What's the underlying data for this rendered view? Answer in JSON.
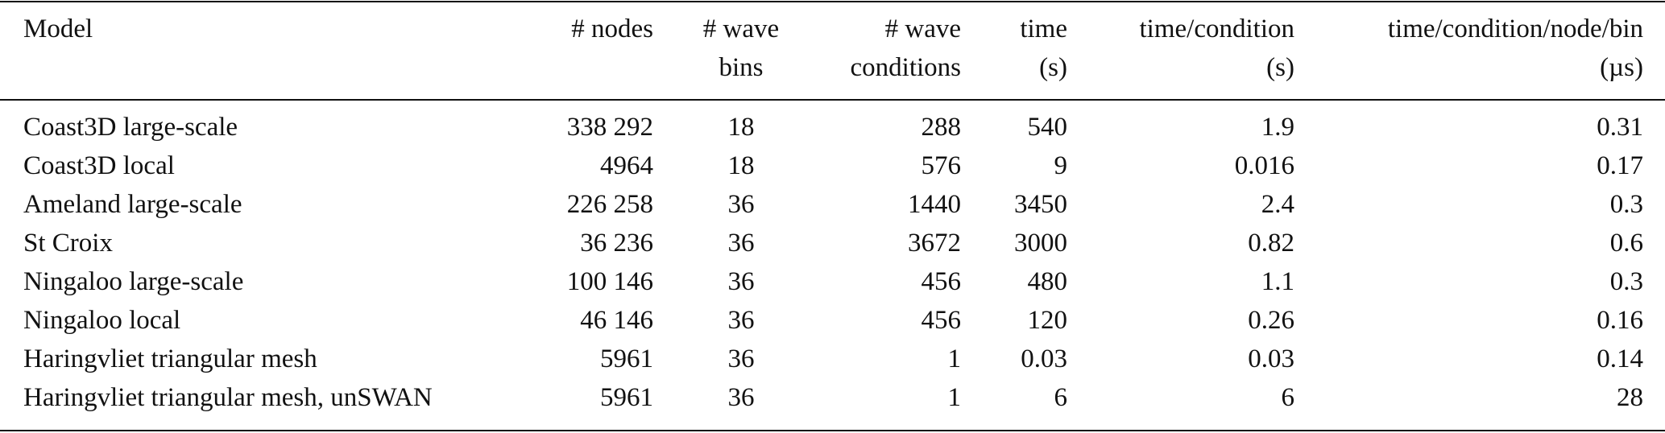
{
  "table": {
    "headers": [
      [
        "Model"
      ],
      [
        "# nodes"
      ],
      [
        "# wave",
        "bins"
      ],
      [
        "# wave",
        "conditions"
      ],
      [
        "time",
        "(s)"
      ],
      [
        "time/condition",
        "(s)"
      ],
      [
        "time/condition/node/bin",
        "(µs)"
      ]
    ],
    "rows": [
      [
        "Coast3D large-scale",
        "338 292",
        "18",
        "288",
        "540",
        "1.9",
        "0.31"
      ],
      [
        "Coast3D local",
        "4964",
        "18",
        "576",
        "9",
        "0.016",
        "0.17"
      ],
      [
        "Ameland large-scale",
        "226 258",
        "36",
        "1440",
        "3450",
        "2.4",
        "0.3"
      ],
      [
        "St Croix",
        "36 236",
        "36",
        "3672",
        "3000",
        "0.82",
        "0.6"
      ],
      [
        "Ningaloo large-scale",
        "100 146",
        "36",
        "456",
        "480",
        "1.1",
        "0.3"
      ],
      [
        "Ningaloo local",
        "46 146",
        "36",
        "456",
        "120",
        "0.26",
        "0.16"
      ],
      [
        "Haringvliet triangular mesh",
        "5961",
        "36",
        "1",
        "0.03",
        "0.03",
        "0.14"
      ],
      [
        "Haringvliet triangular mesh, unSWAN",
        "5961",
        "36",
        "1",
        "6",
        "6",
        "28"
      ]
    ]
  }
}
